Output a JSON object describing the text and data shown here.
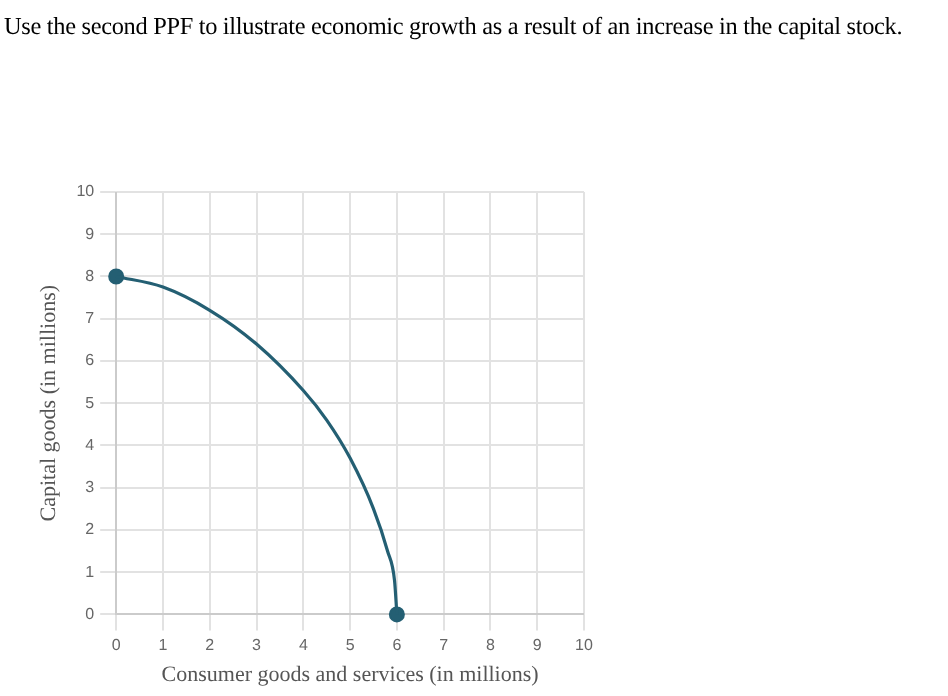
{
  "chart_data": {
    "type": "line",
    "title": "Use the second PPF to illustrate economic growth as a result of an increase in the capital stock.",
    "xlabel": "Consumer goods and services (in millions)",
    "ylabel": "Capital goods (in millions)",
    "series": [
      {
        "type": "line",
        "color": "#245f73",
        "marker": "none",
        "x": [
          0,
          1,
          2,
          3,
          4,
          4.5,
          5,
          5.5,
          5.8,
          5.95,
          6
        ],
        "values": [
          8,
          7.75,
          7.2,
          6.4,
          5.3,
          4.6,
          3.7,
          2.5,
          1.5,
          0.8,
          0
        ]
      },
      {
        "type": "scatter",
        "color": "#245f73",
        "marker": "circle",
        "x": [
          0,
          6
        ],
        "values": [
          8,
          0
        ]
      }
    ],
    "xlim": [
      0,
      10
    ],
    "xticks": [
      0,
      1,
      2,
      3,
      4,
      5,
      6,
      7,
      8,
      9,
      10
    ],
    "ylim": [
      0,
      10
    ],
    "yticks": [
      0,
      1,
      2,
      3,
      4,
      5,
      6,
      7,
      8,
      9,
      10
    ],
    "grid": true,
    "legend": false
  }
}
